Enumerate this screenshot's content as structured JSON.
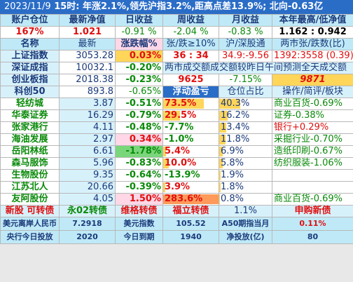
{
  "header": {
    "date": "2023/11/9",
    "summary": "15时: 年涨2.1%,领先沪指3.2%,距高点差13.9%; 北向-0.63亿"
  },
  "account_header": [
    "账户仓位",
    "最新净值",
    "日收益",
    "周收益",
    "月收益",
    "本年最高/低净值"
  ],
  "account_values": [
    "167%",
    "1.021",
    "-0.91 %",
    "-2.04 %",
    "-0.83 %",
    "1.162 : 0.942"
  ],
  "market_header": [
    "名称",
    "最新",
    "涨跌幅%",
    "张/跌≥10%",
    "沪/深股通",
    "两市张/跌数(比)"
  ],
  "indices": [
    {
      "name": "上证指数",
      "last": "3053.28",
      "chg": "0.03%",
      "c4": "36 : 34",
      "c5": "34.9:-9.56",
      "c6": "1392:3558 (0.39)"
    },
    {
      "name": "深证成指",
      "last": "10032.1",
      "chg": "-0.20%",
      "note": "两市成交额成交额较昨日午间预测全天成交额"
    },
    {
      "name": "创业板指",
      "last": "2018.38",
      "chg": "-0.23%",
      "c4": "9625",
      "c5": "-7.15%",
      "c6": "9871"
    }
  ],
  "stock_header": {
    "name": "科创50",
    "last": "893.8",
    "chg": "-0.65%",
    "c4": "浮动盈亏",
    "c5": "仓位占比",
    "c6": "操作/简评/板块"
  },
  "stocks": [
    {
      "name": "轻纺城",
      "last": "3.87",
      "chg": "-0.51%",
      "pl": "73.5%",
      "pos": "40.3%",
      "note": "商业百货-0.69%",
      "plfill": 0.73,
      "posfill": 0.4
    },
    {
      "name": "华泰证券",
      "last": "16.29",
      "chg": "-0.79%",
      "pl": "29.5%",
      "pos": "16.2%",
      "note": "证券-0.38%",
      "plfill": 0.3,
      "posfill": 0.16
    },
    {
      "name": "张家港行",
      "last": "4.11",
      "chg": "-0.48%",
      "pl": "-7.7%",
      "pos": "13.4%",
      "note": "银行+0.29%",
      "plfill": 0,
      "posfill": 0.13
    },
    {
      "name": "海油发展",
      "last": "2.97",
      "chg": "0.34%",
      "pl": "-1.0%",
      "pos": "11.8%",
      "note": "采掘行业-0.70%",
      "plfill": 0,
      "posfill": 0.12
    },
    {
      "name": "岳阳林纸",
      "last": "6.61",
      "chg": "-1.78%",
      "pl": "5.4%",
      "pos": "6.9%",
      "note": "造纸印刷-0.67%",
      "plfill": 0.05,
      "posfill": 0.07
    },
    {
      "name": "森马服饰",
      "last": "5.96",
      "chg": "-0.83%",
      "pl": "10.0%",
      "pos": "5.8%",
      "note": "纺织服装-1.06%",
      "plfill": 0.1,
      "posfill": 0.06
    },
    {
      "name": "生物股份",
      "last": "9.35",
      "chg": "-0.64%",
      "pl": "-13.9%",
      "pos": "1.9%",
      "note": "",
      "plfill": 0,
      "posfill": 0.02
    },
    {
      "name": "江苏北人",
      "last": "20.66",
      "chg": "-0.39%",
      "pl": "3.9%",
      "pos": "1.8%",
      "note": "",
      "plfill": 0.04,
      "posfill": 0.02
    },
    {
      "name": "友阿股份",
      "last": "4.05",
      "chg": "1.50%",
      "pl": "283.6%",
      "pos": "0.8%",
      "note": "商业百货-0.69%",
      "plfill": 1.0,
      "posfill": 0.01
    }
  ],
  "new_bond_row": [
    "新股 可转债",
    "永02转债",
    "维格转债",
    "福立转债",
    "1.1%",
    "申购新债"
  ],
  "footer": [
    [
      "美元离岸人民币",
      "7.2918",
      "美元指数",
      "105.52",
      "A50期指当月",
      "0.11%"
    ],
    [
      "央行今日投放",
      "2020",
      "今日到期",
      "1940",
      "净投放(亿)",
      "80"
    ]
  ],
  "colors": {
    "up": "#e01010",
    "down": "#0a8a0a",
    "header_bg": "#bfe9f7",
    "title_bg": "#2a6dc7"
  }
}
